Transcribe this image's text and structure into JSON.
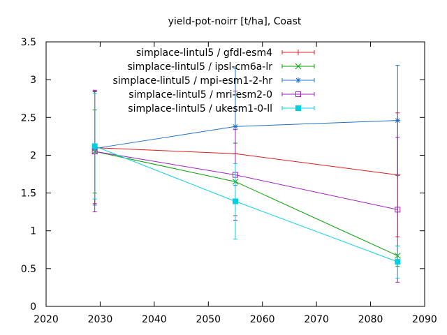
{
  "chart_data": {
    "type": "line",
    "title": "yield-pot-noirr [t/ha], Coast",
    "xlabel": "",
    "ylabel": "",
    "xlim": [
      2020,
      2090
    ],
    "ylim": [
      0,
      3.5
    ],
    "xticks": [
      2020,
      2030,
      2040,
      2050,
      2060,
      2070,
      2080,
      2090
    ],
    "yticks": [
      0,
      0.5,
      1,
      1.5,
      2,
      2.5,
      3,
      3.5
    ],
    "xtick_labels": [
      "2020",
      "2030",
      "2040",
      "2050",
      "2060",
      "2070",
      "2080",
      "2090"
    ],
    "ytick_labels": [
      "0",
      "0.5",
      "1",
      "1.5",
      "2",
      "2.5",
      "3",
      "3.5"
    ],
    "grid": false,
    "legend_position": "top-right",
    "series": [
      {
        "name": "simplace-lintul5 / gfdl-esm4",
        "color": "#e41a1c",
        "marker": "plus",
        "x": [
          2029,
          2055,
          2085
        ],
        "y": [
          2.1,
          2.02,
          1.74
        ],
        "err_low": [
          1.36,
          1.2,
          0.92
        ],
        "err_high": [
          2.85,
          2.85,
          2.56
        ]
      },
      {
        "name": "simplace-lintul5 / ipsl-cm6a-lr",
        "color": "#00a000",
        "marker": "cross",
        "x": [
          2029,
          2055,
          2085
        ],
        "y": [
          2.05,
          1.65,
          0.67
        ],
        "err_low": [
          1.5,
          1.14,
          0.53
        ],
        "err_high": [
          2.6,
          2.16,
          0.8
        ]
      },
      {
        "name": "simplace-lintul5 / mpi-esm1-2-hr",
        "color": "#1f6fc8",
        "marker": "star",
        "x": [
          2029,
          2055,
          2085
        ],
        "y": [
          2.09,
          2.38,
          2.46
        ],
        "err_low": [
          1.34,
          1.6,
          1.73
        ],
        "err_high": [
          2.84,
          3.15,
          3.19
        ]
      },
      {
        "name": "simplace-lintul5 / mri-esm2-0",
        "color": "#a020c0",
        "marker": "square",
        "x": [
          2029,
          2055,
          2085
        ],
        "y": [
          2.05,
          1.74,
          1.28
        ],
        "err_low": [
          1.25,
          1.14,
          0.32
        ],
        "err_high": [
          2.86,
          2.34,
          2.24
        ]
      },
      {
        "name": "simplace-lintul5 / ukesm1-0-ll",
        "color": "#00d0e0",
        "marker": "filled-square",
        "x": [
          2029,
          2055,
          2085
        ],
        "y": [
          2.12,
          1.39,
          0.59
        ],
        "err_low": [
          1.42,
          0.89,
          0.37
        ],
        "err_high": [
          2.82,
          1.89,
          0.8
        ]
      }
    ]
  }
}
